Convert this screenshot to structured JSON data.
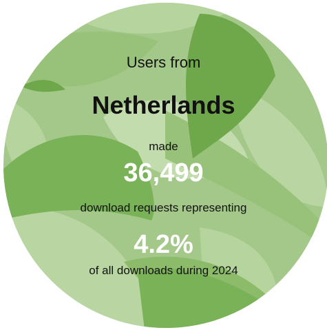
{
  "colors": {
    "base": "#a4c889",
    "light": "#c3dcae",
    "mid": "#8cbb6a",
    "dark": "#6fa84a",
    "text": "#111111",
    "highlight_text": "#ffffff"
  },
  "stat": {
    "intro": "Users from",
    "country": "Netherlands",
    "verb": "made",
    "requests": "36,499",
    "middle": "download requests representing",
    "share": "4.2%",
    "share_fraction": 0.042,
    "tail": "of all downloads during 2024"
  }
}
